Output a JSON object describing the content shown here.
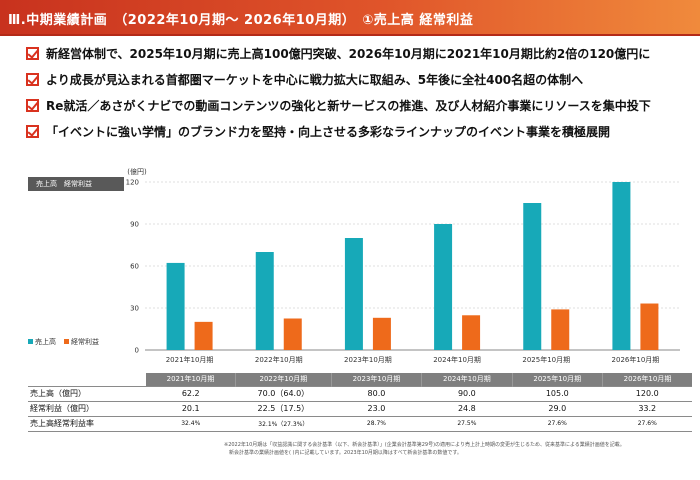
{
  "header": {
    "title": "Ⅲ.中期業績計画　（2022年10月期～ 2026年10月期）　①売上高 経常利益"
  },
  "bullets": [
    "新経営体制で、2025年10月期に売上高100億円突破、2026年10月期に2021年10月期比約2倍の120億円に",
    "より成長が見込まれる首都圏マーケットを中心に戦力拡大に取組み、5年後に全社400名超の体制へ",
    "Re就活／あさがくナビでの動画コンテンツの強化と新サービスの推進、及び人材紹介事業にリソースを集中投下",
    "「イベントに強い学情」のブランド力を堅持・向上させる多彩なラインナップのイベント事業を積極展開"
  ],
  "chart_label": "売上高　経常利益",
  "colors": {
    "sales": "#17a9b8",
    "profit": "#ee6a1b",
    "grid": "#bfbfbf"
  },
  "chart_data": {
    "type": "bar",
    "unit": "(億円)",
    "categories": [
      "2021年10月期",
      "2022年10月期",
      "2023年10月期",
      "2024年10月期",
      "2025年10月期",
      "2026年10月期"
    ],
    "series": [
      {
        "name": "売上高",
        "values": [
          62.2,
          70.0,
          80.0,
          90.0,
          105.0,
          120.0
        ]
      },
      {
        "name": "経常利益",
        "values": [
          20.1,
          22.5,
          23.0,
          24.8,
          29.0,
          33.2
        ]
      }
    ],
    "yticks": [
      "0",
      "30",
      "60",
      "90",
      "120"
    ],
    "ylim": [
      0,
      120
    ],
    "legend": "bottom-left"
  },
  "table": {
    "headers": [
      "2021年10月期",
      "2022年10月期",
      "2023年10月期",
      "2024年10月期",
      "2025年10月期",
      "2026年10月期"
    ],
    "rows": [
      {
        "label": "売上高（億円）",
        "cells": [
          "62.2",
          "70.0（64.0）",
          "80.0",
          "90.0",
          "105.0",
          "120.0"
        ]
      },
      {
        "label": "経常利益（億円）",
        "cells": [
          "20.1",
          "22.5（17.5）",
          "23.0",
          "24.8",
          "29.0",
          "33.2"
        ]
      },
      {
        "label": "売上高経常利益率",
        "cells": [
          "32.4%",
          "32.1%（27.3%）",
          "28.7%",
          "27.5%",
          "27.6%",
          "27.6%"
        ]
      }
    ]
  },
  "note": [
    "※2022年10月期は「収益認識に関する会計基準（以下、新会計基準）」(企業会計基準第29号)の適用により売上計上時期の変更が生じるため、従来基準による業績計画値を記載。",
    "　新会計基準の業績計画値を( )内に記載しています。2023年10月期以降はすべて新会計基準の数値です。"
  ]
}
